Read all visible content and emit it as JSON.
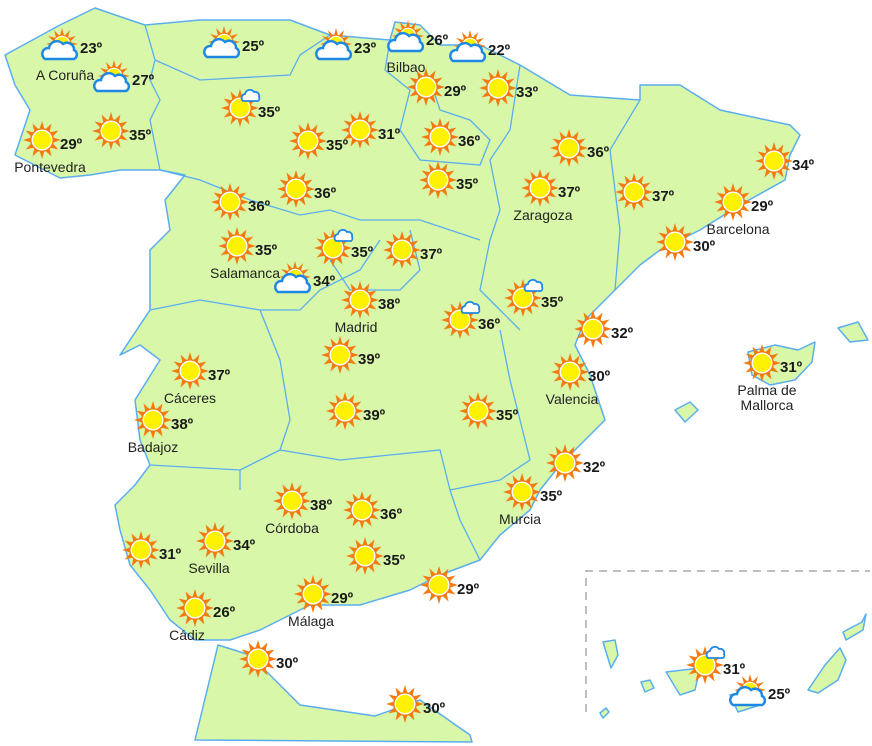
{
  "colors": {
    "land": "#d8f7a8",
    "border": "#5aaef0",
    "sun_core": "#fff200",
    "sun_rays": "#f47a10",
    "cloud": "#1e88e5"
  },
  "stations": [
    {
      "temp": "23º",
      "city": "A Coruña",
      "icon": "cloudy"
    },
    {
      "temp": "25º",
      "city": "",
      "icon": "cloudy"
    },
    {
      "temp": "23º",
      "city": "",
      "icon": "cloudy"
    },
    {
      "temp": "26º",
      "city": "Bilbao",
      "icon": "cloudy"
    },
    {
      "temp": "22º",
      "city": "",
      "icon": "cloudy"
    },
    {
      "temp": "27º",
      "city": "",
      "icon": "cloudy"
    },
    {
      "temp": "29º",
      "city": "",
      "icon": "sunny"
    },
    {
      "temp": "33º",
      "city": "",
      "icon": "sunny"
    },
    {
      "temp": "35º",
      "city": "",
      "icon": "partly-cloudy"
    },
    {
      "temp": "29º",
      "city": "Pontevedra",
      "icon": "sunny"
    },
    {
      "temp": "35º",
      "city": "",
      "icon": "sunny"
    },
    {
      "temp": "35º",
      "city": "",
      "icon": "sunny"
    },
    {
      "temp": "31º",
      "city": "",
      "icon": "sunny"
    },
    {
      "temp": "36º",
      "city": "",
      "icon": "sunny"
    },
    {
      "temp": "36º",
      "city": "",
      "icon": "sunny"
    },
    {
      "temp": "34º",
      "city": "",
      "icon": "sunny"
    },
    {
      "temp": "35º",
      "city": "",
      "icon": "sunny"
    },
    {
      "temp": "36º",
      "city": "",
      "icon": "sunny"
    },
    {
      "temp": "36º",
      "city": "",
      "icon": "sunny"
    },
    {
      "temp": "37º",
      "city": "Zaragoza",
      "icon": "sunny"
    },
    {
      "temp": "37º",
      "city": "",
      "icon": "sunny"
    },
    {
      "temp": "29º",
      "city": "Barcelona",
      "icon": "sunny"
    },
    {
      "temp": "35º",
      "city": "Salamanca",
      "icon": "sunny"
    },
    {
      "temp": "35º",
      "city": "",
      "icon": "partly-cloudy"
    },
    {
      "temp": "37º",
      "city": "",
      "icon": "sunny"
    },
    {
      "temp": "30º",
      "city": "",
      "icon": "sunny"
    },
    {
      "temp": "34º",
      "city": "",
      "icon": "cloudy"
    },
    {
      "temp": "38º",
      "city": "Madrid",
      "icon": "sunny"
    },
    {
      "temp": "36º",
      "city": "",
      "icon": "partly-cloudy"
    },
    {
      "temp": "35º",
      "city": "",
      "icon": "partly-cloudy"
    },
    {
      "temp": "32º",
      "city": "",
      "icon": "sunny"
    },
    {
      "temp": "37º",
      "city": "Cáceres",
      "icon": "sunny"
    },
    {
      "temp": "39º",
      "city": "",
      "icon": "sunny"
    },
    {
      "temp": "30º",
      "city": "Valencia",
      "icon": "sunny"
    },
    {
      "temp": "31º",
      "city": "Palma de Mallorca",
      "icon": "sunny"
    },
    {
      "temp": "38º",
      "city": "Badajoz",
      "icon": "sunny"
    },
    {
      "temp": "39º",
      "city": "",
      "icon": "sunny"
    },
    {
      "temp": "35º",
      "city": "",
      "icon": "sunny"
    },
    {
      "temp": "32º",
      "city": "",
      "icon": "sunny"
    },
    {
      "temp": "35º",
      "city": "Murcia",
      "icon": "sunny"
    },
    {
      "temp": "38º",
      "city": "Córdoba",
      "icon": "sunny"
    },
    {
      "temp": "36º",
      "city": "",
      "icon": "sunny"
    },
    {
      "temp": "34º",
      "city": "Sevilla",
      "icon": "sunny"
    },
    {
      "temp": "31º",
      "city": "",
      "icon": "sunny"
    },
    {
      "temp": "35º",
      "city": "",
      "icon": "sunny"
    },
    {
      "temp": "29º",
      "city": "Málaga",
      "icon": "sunny"
    },
    {
      "temp": "29º",
      "city": "",
      "icon": "sunny"
    },
    {
      "temp": "26º",
      "city": "Cádiz",
      "icon": "sunny"
    },
    {
      "temp": "30º",
      "city": "",
      "icon": "sunny"
    },
    {
      "temp": "30º",
      "city": "",
      "icon": "sunny"
    },
    {
      "temp": "31º",
      "city": "",
      "icon": "partly-cloudy"
    },
    {
      "temp": "25º",
      "city": "",
      "icon": "cloudy"
    }
  ]
}
